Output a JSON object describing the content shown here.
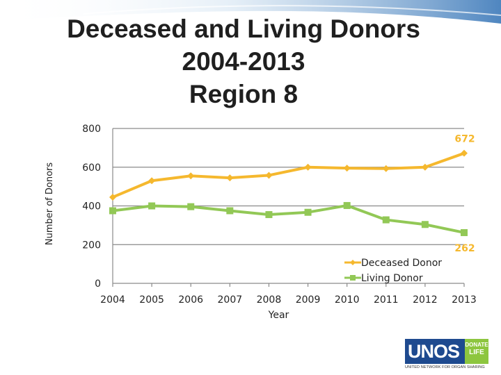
{
  "slide": {
    "title_lines": [
      "Deceased and Living Donors",
      "2004-2013",
      "Region 8"
    ]
  },
  "chart_data": {
    "type": "line",
    "x": [
      2004,
      2005,
      2006,
      2007,
      2008,
      2009,
      2010,
      2011,
      2012,
      2013
    ],
    "series": [
      {
        "name": "Deceased Donor",
        "values": [
          445,
          530,
          555,
          545,
          558,
          600,
          595,
          593,
          600,
          672
        ],
        "color": "#f5b82e",
        "marker": "diamond"
      },
      {
        "name": "Living Donor",
        "values": [
          375,
          400,
          396,
          375,
          355,
          367,
          402,
          328,
          304,
          262
        ],
        "color": "#92c856",
        "marker": "square"
      }
    ],
    "data_labels": [
      {
        "series": 0,
        "index": 9,
        "text": "672"
      },
      {
        "series": 1,
        "index": 9,
        "text": "262"
      }
    ],
    "xlabel": "Year",
    "ylabel": "Number of Donors",
    "ylim": [
      0,
      800
    ],
    "yticks": [
      0,
      200,
      400,
      600,
      800
    ],
    "xtick_labels": [
      "2004",
      "2005",
      "2006",
      "2007",
      "2008",
      "2009",
      "2010",
      "2011",
      "2012",
      "2013"
    ],
    "ytick_labels": [
      "0",
      "200",
      "400",
      "600",
      "800"
    ],
    "grid": true,
    "legend_position": "right"
  },
  "logo": {
    "main": "UNOS",
    "badge_top": "DONATE",
    "badge_bottom": "LIFE",
    "subtitle": "UNITED NETWORK FOR ORGAN SHARING"
  }
}
